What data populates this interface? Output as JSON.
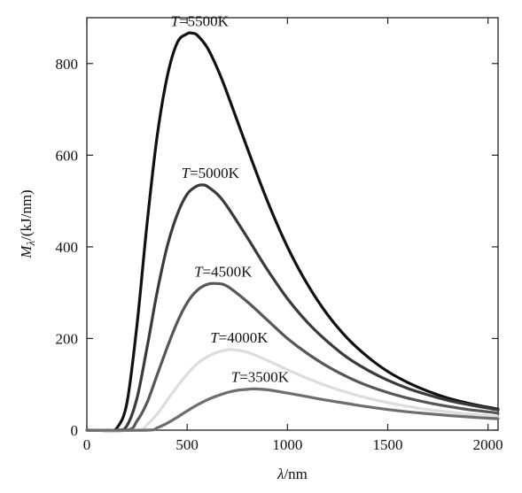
{
  "chart_data": {
    "type": "line",
    "title": "",
    "xlabel": {
      "symbol": "λ",
      "unit": "/nm"
    },
    "ylabel": {
      "symbol": "M",
      "subscript": "λ",
      "unit": "/(kJ/nm)"
    },
    "xlim": [
      0,
      2050
    ],
    "ylim": [
      0,
      900
    ],
    "xticks": [
      0,
      500,
      1000,
      1500,
      2000
    ],
    "yticks": [
      0,
      200,
      400,
      600,
      800
    ],
    "grid": false,
    "series": [
      {
        "name": "T=5500K",
        "label_prefix": "T",
        "label_suffix": "=5500K",
        "color": "#111111",
        "x": [
          0,
          100,
          150,
          200,
          250,
          300,
          350,
          400,
          450,
          500,
          527,
          550,
          600,
          650,
          700,
          800,
          900,
          1000,
          1100,
          1200,
          1300,
          1400,
          1500,
          1600,
          1700,
          1800,
          1900,
          2000,
          2050
        ],
        "y": [
          0,
          0,
          5,
          60,
          230,
          450,
          640,
          770,
          845,
          865,
          866,
          862,
          835,
          790,
          735,
          615,
          500,
          400,
          318,
          252,
          200,
          160,
          128,
          104,
          85,
          70,
          59,
          50,
          46
        ]
      },
      {
        "name": "T=5000K",
        "label_prefix": "T",
        "label_suffix": "=5000K",
        "color": "#3a3a3a",
        "x": [
          0,
          150,
          200,
          250,
          300,
          350,
          400,
          450,
          500,
          550,
          580,
          600,
          650,
          700,
          800,
          900,
          1000,
          1100,
          1200,
          1300,
          1400,
          1500,
          1600,
          1700,
          1800,
          1900,
          2000,
          2050
        ],
        "y": [
          0,
          0,
          10,
          70,
          180,
          300,
          400,
          470,
          515,
          533,
          535,
          532,
          515,
          488,
          420,
          350,
          287,
          235,
          193,
          158,
          131,
          109,
          91,
          77,
          65,
          56,
          48,
          44
        ]
      },
      {
        "name": "T=4500K",
        "label_prefix": "T",
        "label_suffix": "=4500K",
        "color": "#575757",
        "x": [
          0,
          200,
          250,
          300,
          350,
          400,
          450,
          500,
          550,
          600,
          644,
          700,
          800,
          900,
          1000,
          1100,
          1200,
          1300,
          1400,
          1500,
          1600,
          1700,
          1800,
          1900,
          2000,
          2050
        ],
        "y": [
          0,
          0,
          20,
          60,
          120,
          180,
          235,
          278,
          305,
          318,
          320,
          314,
          280,
          240,
          200,
          167,
          139,
          116,
          97,
          82,
          70,
          60,
          52,
          45,
          40,
          37
        ]
      },
      {
        "name": "T=4000K",
        "label_prefix": "T",
        "label_suffix": "=4000K",
        "color": "#dddddd",
        "x": [
          0,
          250,
          300,
          350,
          400,
          450,
          500,
          550,
          600,
          650,
          700,
          724,
          800,
          900,
          1000,
          1100,
          1200,
          1300,
          1400,
          1500,
          1600,
          1700,
          1800,
          1900,
          2000,
          2050
        ],
        "y": [
          0,
          0,
          12,
          35,
          65,
          95,
          122,
          145,
          160,
          170,
          175,
          176,
          170,
          152,
          132,
          113,
          96,
          82,
          70,
          60,
          52,
          45,
          40,
          35,
          31,
          29
        ]
      },
      {
        "name": "T=3500K",
        "label_prefix": "T",
        "label_suffix": "=3500K",
        "color": "#6e6e6e",
        "x": [
          0,
          300,
          350,
          400,
          450,
          500,
          550,
          600,
          650,
          700,
          750,
          800,
          828,
          900,
          1000,
          1100,
          1200,
          1300,
          1400,
          1500,
          1600,
          1700,
          1800,
          1900,
          2000,
          2050
        ],
        "y": [
          0,
          0,
          5,
          15,
          28,
          42,
          55,
          66,
          75,
          82,
          87,
          89,
          90,
          88,
          81,
          73,
          65,
          58,
          51,
          45,
          40,
          36,
          32,
          29,
          26,
          25
        ]
      }
    ]
  }
}
